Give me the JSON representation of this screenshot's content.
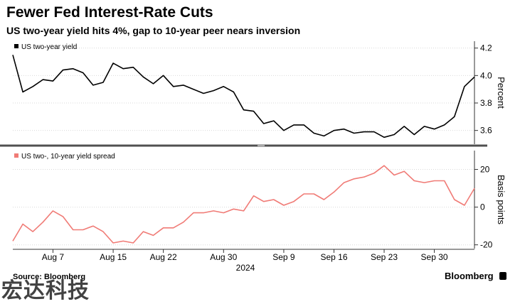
{
  "header": {
    "title": "Fewer Fed Interest-Rate Cuts",
    "subtitle": "US two-year yield hits 4%, gap to 10-year peer nears inversion"
  },
  "footer": {
    "source": "Source: Bloomberg",
    "brand": "Bloomberg",
    "watermark": "宏达科技"
  },
  "chart_data": [
    {
      "type": "line",
      "legend": "US two-year yield",
      "ylabel": "Percent",
      "ylim": [
        3.5,
        4.25
      ],
      "yticks": [
        "3.6",
        "3.8",
        "4.0",
        "4.2"
      ],
      "color": "#000000",
      "x": [
        "Aug 1",
        "Aug 2",
        "Aug 5",
        "Aug 6",
        "Aug 7",
        "Aug 8",
        "Aug 9",
        "Aug 12",
        "Aug 13",
        "Aug 14",
        "Aug 15",
        "Aug 16",
        "Aug 19",
        "Aug 20",
        "Aug 21",
        "Aug 22",
        "Aug 23",
        "Aug 26",
        "Aug 27",
        "Aug 28",
        "Aug 29",
        "Aug 30",
        "Sep 2",
        "Sep 3",
        "Sep 4",
        "Sep 5",
        "Sep 6",
        "Sep 9",
        "Sep 10",
        "Sep 11",
        "Sep 12",
        "Sep 13",
        "Sep 16",
        "Sep 17",
        "Sep 18",
        "Sep 19",
        "Sep 20",
        "Sep 23",
        "Sep 24",
        "Sep 25",
        "Sep 26",
        "Sep 27",
        "Sep 30",
        "Oct 1",
        "Oct 2",
        "Oct 3",
        "Oct 4"
      ],
      "values": [
        4.15,
        3.88,
        3.92,
        3.97,
        3.96,
        4.04,
        4.05,
        4.02,
        3.93,
        3.95,
        4.09,
        4.05,
        4.06,
        3.99,
        3.94,
        4.0,
        3.92,
        3.93,
        3.9,
        3.87,
        3.89,
        3.92,
        3.88,
        3.75,
        3.74,
        3.65,
        3.67,
        3.6,
        3.64,
        3.64,
        3.58,
        3.56,
        3.6,
        3.61,
        3.58,
        3.59,
        3.59,
        3.55,
        3.57,
        3.63,
        3.57,
        3.63,
        3.61,
        3.64,
        3.7,
        3.92,
        3.99
      ]
    },
    {
      "type": "line",
      "legend": "US two-, 10-year yield spread",
      "ylabel": "Basis points",
      "ylim": [
        -22,
        30
      ],
      "yticks": [
        "-20",
        "0",
        "20"
      ],
      "color": "#f07b76",
      "x": [
        "Aug 1",
        "Aug 2",
        "Aug 5",
        "Aug 6",
        "Aug 7",
        "Aug 8",
        "Aug 9",
        "Aug 12",
        "Aug 13",
        "Aug 14",
        "Aug 15",
        "Aug 16",
        "Aug 19",
        "Aug 20",
        "Aug 21",
        "Aug 22",
        "Aug 23",
        "Aug 26",
        "Aug 27",
        "Aug 28",
        "Aug 29",
        "Aug 30",
        "Sep 2",
        "Sep 3",
        "Sep 4",
        "Sep 5",
        "Sep 6",
        "Sep 9",
        "Sep 10",
        "Sep 11",
        "Sep 12",
        "Sep 13",
        "Sep 16",
        "Sep 17",
        "Sep 18",
        "Sep 19",
        "Sep 20",
        "Sep 23",
        "Sep 24",
        "Sep 25",
        "Sep 26",
        "Sep 27",
        "Sep 30",
        "Oct 1",
        "Oct 2",
        "Oct 3",
        "Oct 4"
      ],
      "values": [
        -18,
        -9,
        -13,
        -8,
        -2,
        -5,
        -12,
        -12,
        -10,
        -13,
        -19,
        -18,
        -19,
        -13,
        -15,
        -11,
        -11,
        -8,
        -3,
        -3,
        -2,
        -3,
        -1,
        -2,
        6,
        3,
        4,
        1,
        3,
        7,
        7,
        4,
        8,
        13,
        15,
        16,
        18,
        22,
        17,
        19,
        14,
        13,
        14,
        14,
        4,
        1,
        10
      ]
    }
  ],
  "x_axis": {
    "tick_labels": [
      "Aug 7",
      "Aug 15",
      "Aug 22",
      "Aug 30",
      "Sep 9",
      "Sep 16",
      "Sep 23",
      "Sep 30"
    ],
    "year_label": "2024"
  },
  "colors": {
    "upper_line": "#000000",
    "lower_line": "#f07b76",
    "grid": "#d9d9d9",
    "divider": "#505050"
  }
}
